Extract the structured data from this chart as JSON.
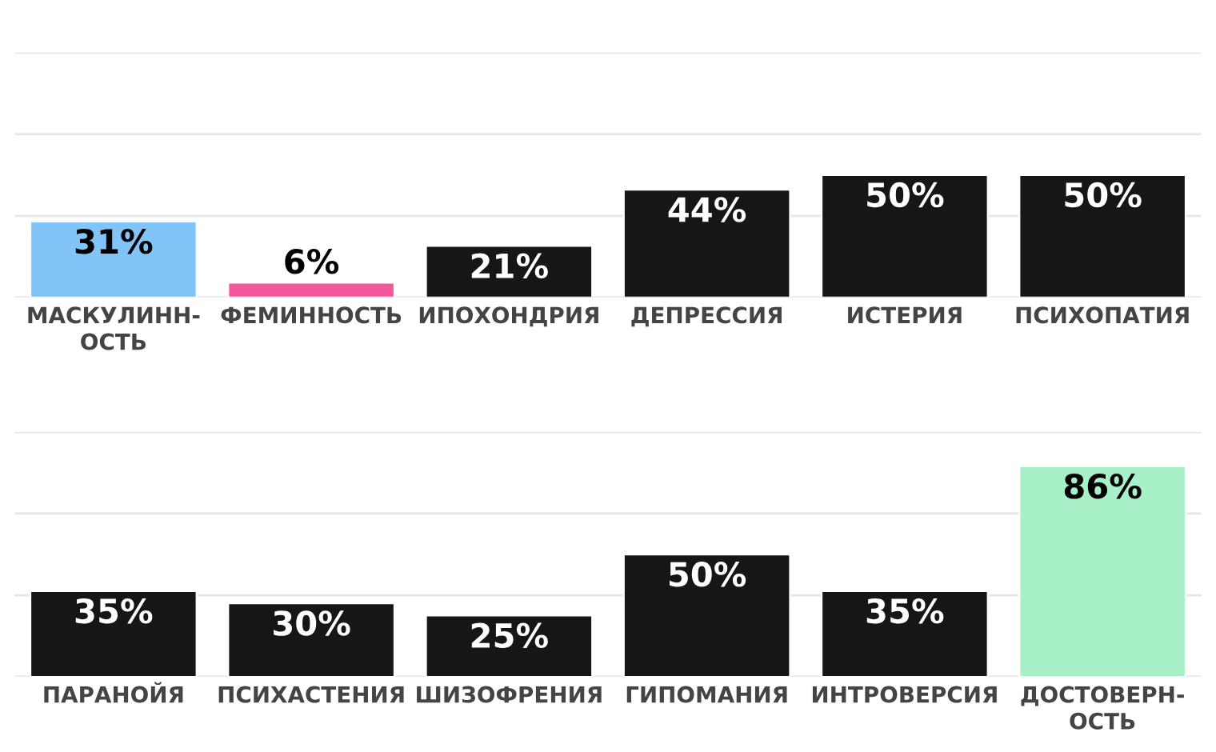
{
  "chart_data": [
    {
      "type": "bar",
      "categories": [
        "МАСКУЛИНН-\nОСТЬ",
        "ФЕМИННОСТЬ",
        "ИПОХОНДРИЯ",
        "ДЕПРЕССИЯ",
        "ИСТЕРИЯ",
        "ПСИХОПАТИЯ"
      ],
      "values": [
        31,
        6,
        21,
        44,
        50,
        50
      ],
      "colors": [
        "#80c4f8",
        "#f2579c",
        "#161616",
        "#161616",
        "#161616",
        "#161616"
      ],
      "value_labels": [
        "31%",
        "6%",
        "21%",
        "44%",
        "50%",
        "50%"
      ],
      "ylim": [
        0,
        100
      ],
      "yticks": [
        {
          "value": 0,
          "label": null
        },
        {
          "value": 33.3,
          "label": null
        },
        {
          "value": 66.7,
          "label": null
        },
        {
          "value": 100,
          "label": null
        }
      ],
      "grid": "y",
      "tick_labels": "x"
    },
    {
      "type": "bar",
      "categories": [
        "ПАРАНОЙЯ",
        "ПСИХАСТЕНИЯ",
        "ШИЗОФРЕНИЯ",
        "ГИПОМАНИЯ",
        "ИНТРОВЕРСИЯ",
        "ДОСТОВЕРН-\nОСТЬ"
      ],
      "values": [
        35,
        30,
        25,
        50,
        35,
        86
      ],
      "colors": [
        "#161616",
        "#161616",
        "#161616",
        "#161616",
        "#161616",
        "#a8f0c8"
      ],
      "value_labels": [
        "35%",
        "30%",
        "25%",
        "50%",
        "35%",
        "86%"
      ],
      "ylim": [
        0,
        100
      ],
      "yticks": [
        {
          "value": 0,
          "label": null
        },
        {
          "value": 33.3,
          "label": null
        },
        {
          "value": 66.7,
          "label": null
        },
        {
          "value": 100,
          "label": null
        }
      ],
      "grid": "y",
      "tick_labels": "x"
    }
  ]
}
